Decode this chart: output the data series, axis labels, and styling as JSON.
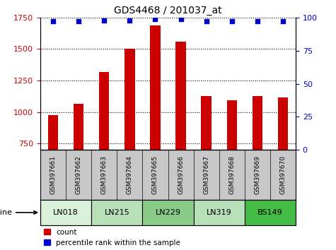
{
  "title": "GDS4468 / 201037_at",
  "samples": [
    "GSM397661",
    "GSM397662",
    "GSM397663",
    "GSM397664",
    "GSM397665",
    "GSM397666",
    "GSM397667",
    "GSM397668",
    "GSM397669",
    "GSM397670"
  ],
  "bar_values": [
    975,
    1065,
    1320,
    1505,
    1690,
    1560,
    1130,
    1095,
    1130,
    1115
  ],
  "percentile_values": [
    97,
    97,
    98,
    98,
    99,
    99,
    97,
    97,
    97,
    97
  ],
  "cell_lines": [
    {
      "name": "LN018",
      "span": [
        0,
        2
      ],
      "color": "#d9f0d9"
    },
    {
      "name": "LN215",
      "span": [
        2,
        4
      ],
      "color": "#b8e0b8"
    },
    {
      "name": "LN229",
      "span": [
        4,
        6
      ],
      "color": "#88cc88"
    },
    {
      "name": "LN319",
      "span": [
        6,
        8
      ],
      "color": "#b8e0b8"
    },
    {
      "name": "BS149",
      "span": [
        8,
        10
      ],
      "color": "#44bb44"
    }
  ],
  "bar_color": "#cc0000",
  "dot_color": "#0000cc",
  "ylim_left": [
    700,
    1750
  ],
  "ylim_right": [
    0,
    100
  ],
  "yticks_left": [
    750,
    1000,
    1250,
    1500,
    1750
  ],
  "yticks_right": [
    0,
    25,
    50,
    75,
    100
  ],
  "sample_bg_color": "#c8c8c8",
  "grid_linestyle": "dotted",
  "bar_width": 0.4
}
